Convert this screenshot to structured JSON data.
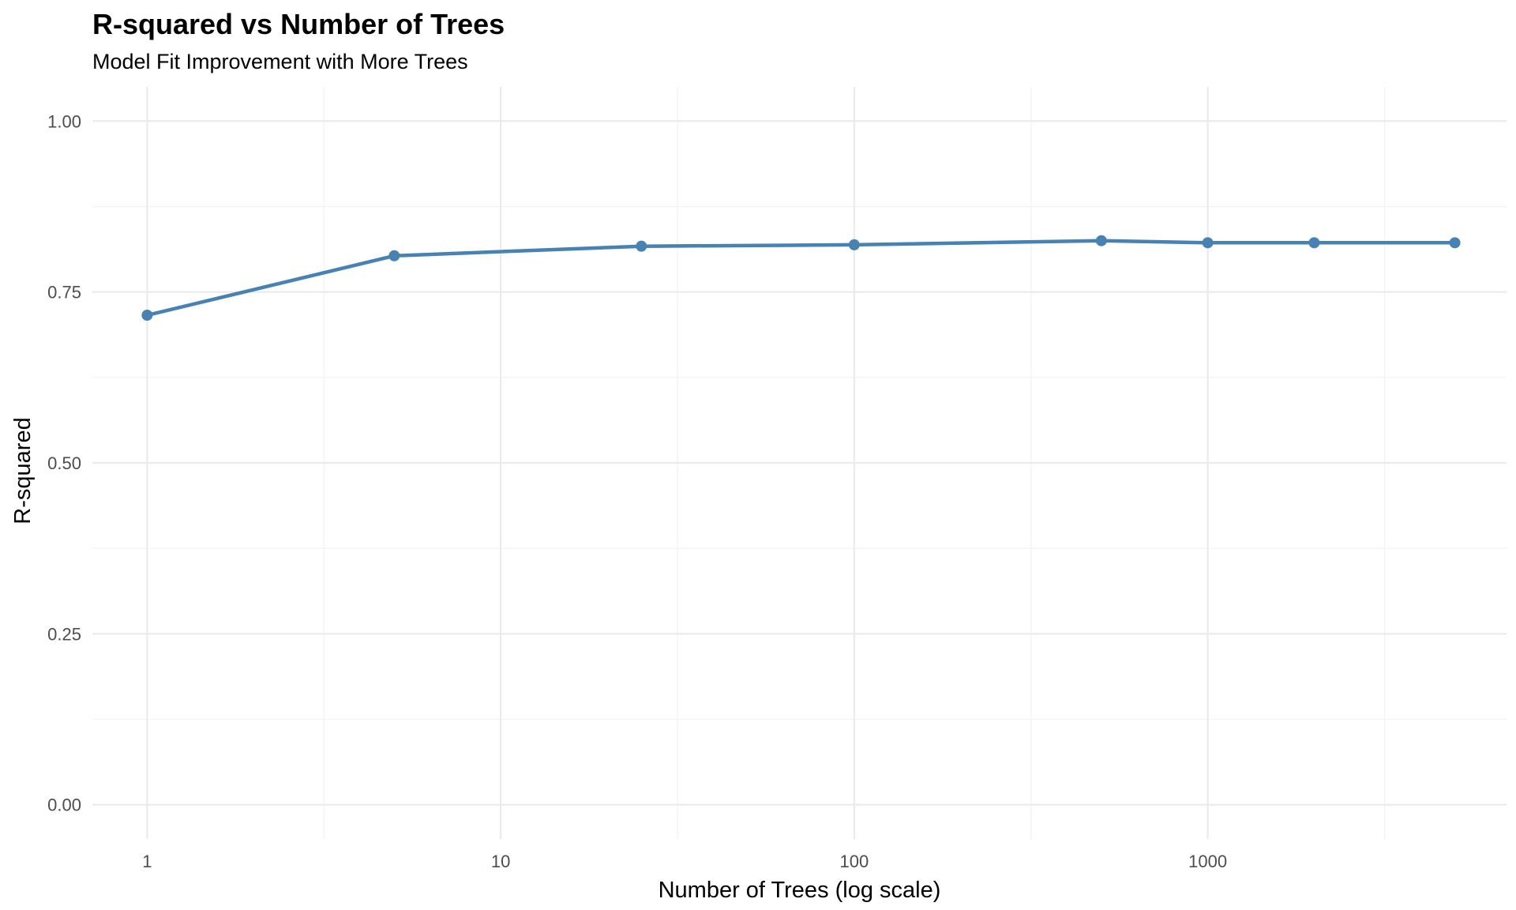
{
  "chart_data": {
    "type": "line",
    "title": "R-squared vs Number of Trees",
    "subtitle": "Model Fit Improvement with More Trees",
    "xlabel": "Number of Trees (log scale)",
    "ylabel": "R-squared",
    "x_scale": "log10",
    "xlim": [
      0.7,
      7000
    ],
    "ylim": [
      -0.05,
      1.05
    ],
    "x_ticks": [
      1,
      10,
      100,
      1000
    ],
    "x_tick_labels": [
      "1",
      "10",
      "100",
      "1000"
    ],
    "y_ticks": [
      0,
      0.25,
      0.5,
      0.75,
      1
    ],
    "y_tick_labels": [
      "0.00",
      "0.25",
      "0.50",
      "0.75",
      "1.00"
    ],
    "grid": true,
    "series": [
      {
        "color": "#4682b4",
        "x": [
          1,
          5,
          25,
          100,
          500,
          1000,
          2000,
          5000
        ],
        "y": [
          0.716,
          0.803,
          0.817,
          0.819,
          0.825,
          0.822,
          0.822,
          0.822
        ]
      }
    ]
  }
}
